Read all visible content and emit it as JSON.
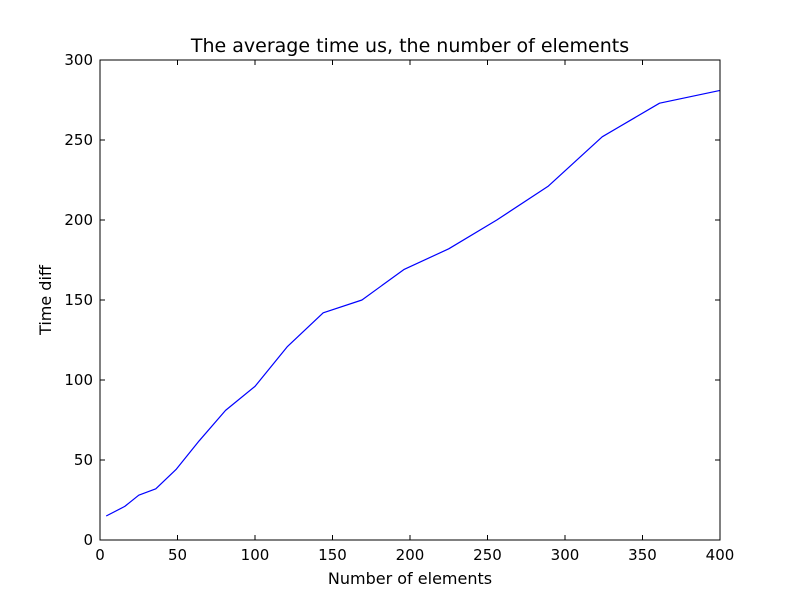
{
  "chart_data": {
    "type": "line",
    "title": "The average time us, the number of elements",
    "xlabel": "Number of elements",
    "ylabel": "Time diff",
    "xlim": [
      0,
      400
    ],
    "ylim": [
      0,
      300
    ],
    "xticks": [
      0,
      50,
      100,
      150,
      200,
      250,
      300,
      350,
      400
    ],
    "yticks": [
      0,
      50,
      100,
      150,
      200,
      250,
      300
    ],
    "grid": false,
    "legend": "none",
    "series": [
      {
        "color": "#0000ff",
        "x": [
          4,
          16,
          25,
          36,
          49,
          64,
          81,
          100,
          121,
          144,
          169,
          196,
          225,
          256,
          289,
          324,
          361,
          400
        ],
        "y": [
          15,
          21,
          28,
          32,
          44,
          62,
          81,
          96,
          121,
          142,
          150,
          169,
          182,
          200,
          221,
          252,
          273,
          281
        ]
      }
    ]
  }
}
